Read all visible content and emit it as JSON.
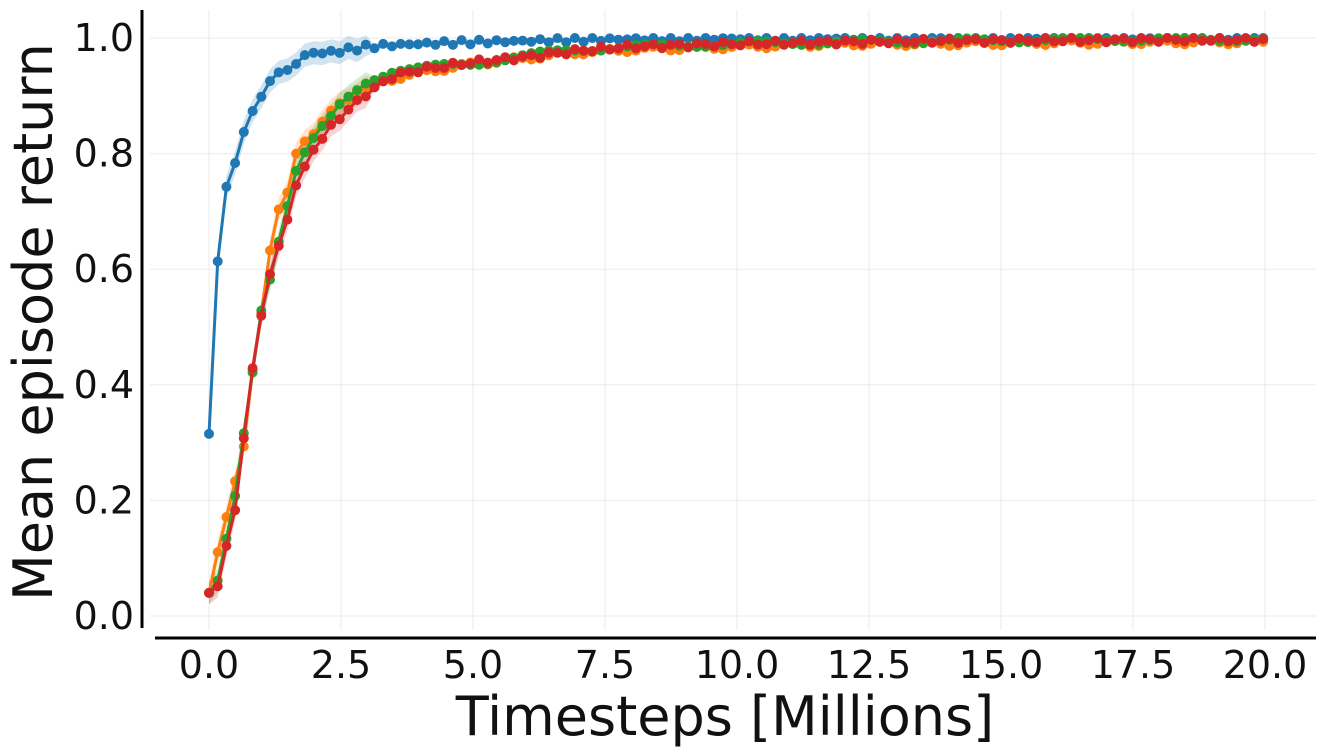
{
  "chart_data": {
    "type": "line",
    "title": "",
    "xlabel": "Timesteps [Millions]",
    "ylabel": "Mean episode return",
    "xlim": [
      -0.9,
      20.9
    ],
    "ylim": [
      -0.03,
      1.05
    ],
    "xticks": [
      "0.0",
      "2.5",
      "5.0",
      "7.5",
      "10.0",
      "12.5",
      "15.0",
      "17.5",
      "20.0"
    ],
    "yticks": [
      "0.0",
      "0.2",
      "0.4",
      "0.6",
      "0.8",
      "1.0"
    ],
    "grid": true,
    "legend": "none",
    "series": [
      {
        "color": "#1f77b4",
        "x": [
          0.0,
          0.15,
          0.3,
          0.5,
          0.65,
          0.8,
          1.0,
          1.15,
          1.3,
          1.5,
          1.65,
          1.8,
          2.0,
          2.3,
          2.5,
          3.0,
          3.5,
          4.0,
          5.0,
          6.0,
          7.0,
          8.0,
          10.0,
          12.0,
          14.0,
          16.0,
          18.0,
          20.0
        ],
        "values": [
          0.315,
          0.6,
          0.735,
          0.785,
          0.835,
          0.87,
          0.9,
          0.925,
          0.94,
          0.945,
          0.955,
          0.97,
          0.975,
          0.975,
          0.978,
          0.985,
          0.988,
          0.99,
          0.993,
          0.995,
          0.997,
          0.998,
          0.999,
          0.999,
          1.0,
          1.0,
          1.0,
          1.0
        ]
      },
      {
        "color": "#ff7f0e",
        "x": [
          0.0,
          0.15,
          0.3,
          0.5,
          0.65,
          0.8,
          1.0,
          1.15,
          1.3,
          1.5,
          1.65,
          1.8,
          2.0,
          2.3,
          2.5,
          3.0,
          3.5,
          4.0,
          5.0,
          6.0,
          7.0,
          8.0,
          10.0,
          12.0,
          14.0,
          16.0,
          18.0,
          20.0
        ],
        "values": [
          0.04,
          0.105,
          0.16,
          0.235,
          0.285,
          0.41,
          0.53,
          0.63,
          0.7,
          0.735,
          0.8,
          0.82,
          0.835,
          0.87,
          0.89,
          0.915,
          0.93,
          0.94,
          0.955,
          0.965,
          0.975,
          0.98,
          0.985,
          0.99,
          0.99,
          0.992,
          0.993,
          0.993
        ]
      },
      {
        "color": "#2ca02c",
        "x": [
          0.0,
          0.15,
          0.3,
          0.5,
          0.65,
          0.8,
          1.0,
          1.15,
          1.3,
          1.5,
          1.65,
          1.8,
          2.0,
          2.3,
          2.5,
          3.0,
          3.5,
          4.0,
          5.0,
          6.0,
          7.0,
          8.0,
          10.0,
          12.0,
          14.0,
          16.0,
          18.0,
          20.0
        ],
        "values": [
          0.04,
          0.055,
          0.12,
          0.21,
          0.31,
          0.405,
          0.535,
          0.58,
          0.64,
          0.715,
          0.77,
          0.8,
          0.83,
          0.86,
          0.885,
          0.925,
          0.945,
          0.948,
          0.955,
          0.97,
          0.98,
          0.985,
          0.99,
          0.993,
          0.995,
          0.997,
          0.998,
          0.998
        ]
      },
      {
        "color": "#d62728",
        "x": [
          0.0,
          0.15,
          0.3,
          0.5,
          0.65,
          0.8,
          1.0,
          1.15,
          1.3,
          1.5,
          1.65,
          1.8,
          2.0,
          2.3,
          2.5,
          3.0,
          3.5,
          4.0,
          5.0,
          6.0,
          7.0,
          8.0,
          10.0,
          12.0,
          14.0,
          16.0,
          18.0,
          20.0
        ],
        "values": [
          0.04,
          0.045,
          0.11,
          0.185,
          0.3,
          0.415,
          0.525,
          0.59,
          0.635,
          0.69,
          0.745,
          0.775,
          0.81,
          0.845,
          0.865,
          0.905,
          0.935,
          0.945,
          0.958,
          0.967,
          0.978,
          0.985,
          0.99,
          0.993,
          0.995,
          0.996,
          0.997,
          0.997
        ]
      }
    ]
  }
}
